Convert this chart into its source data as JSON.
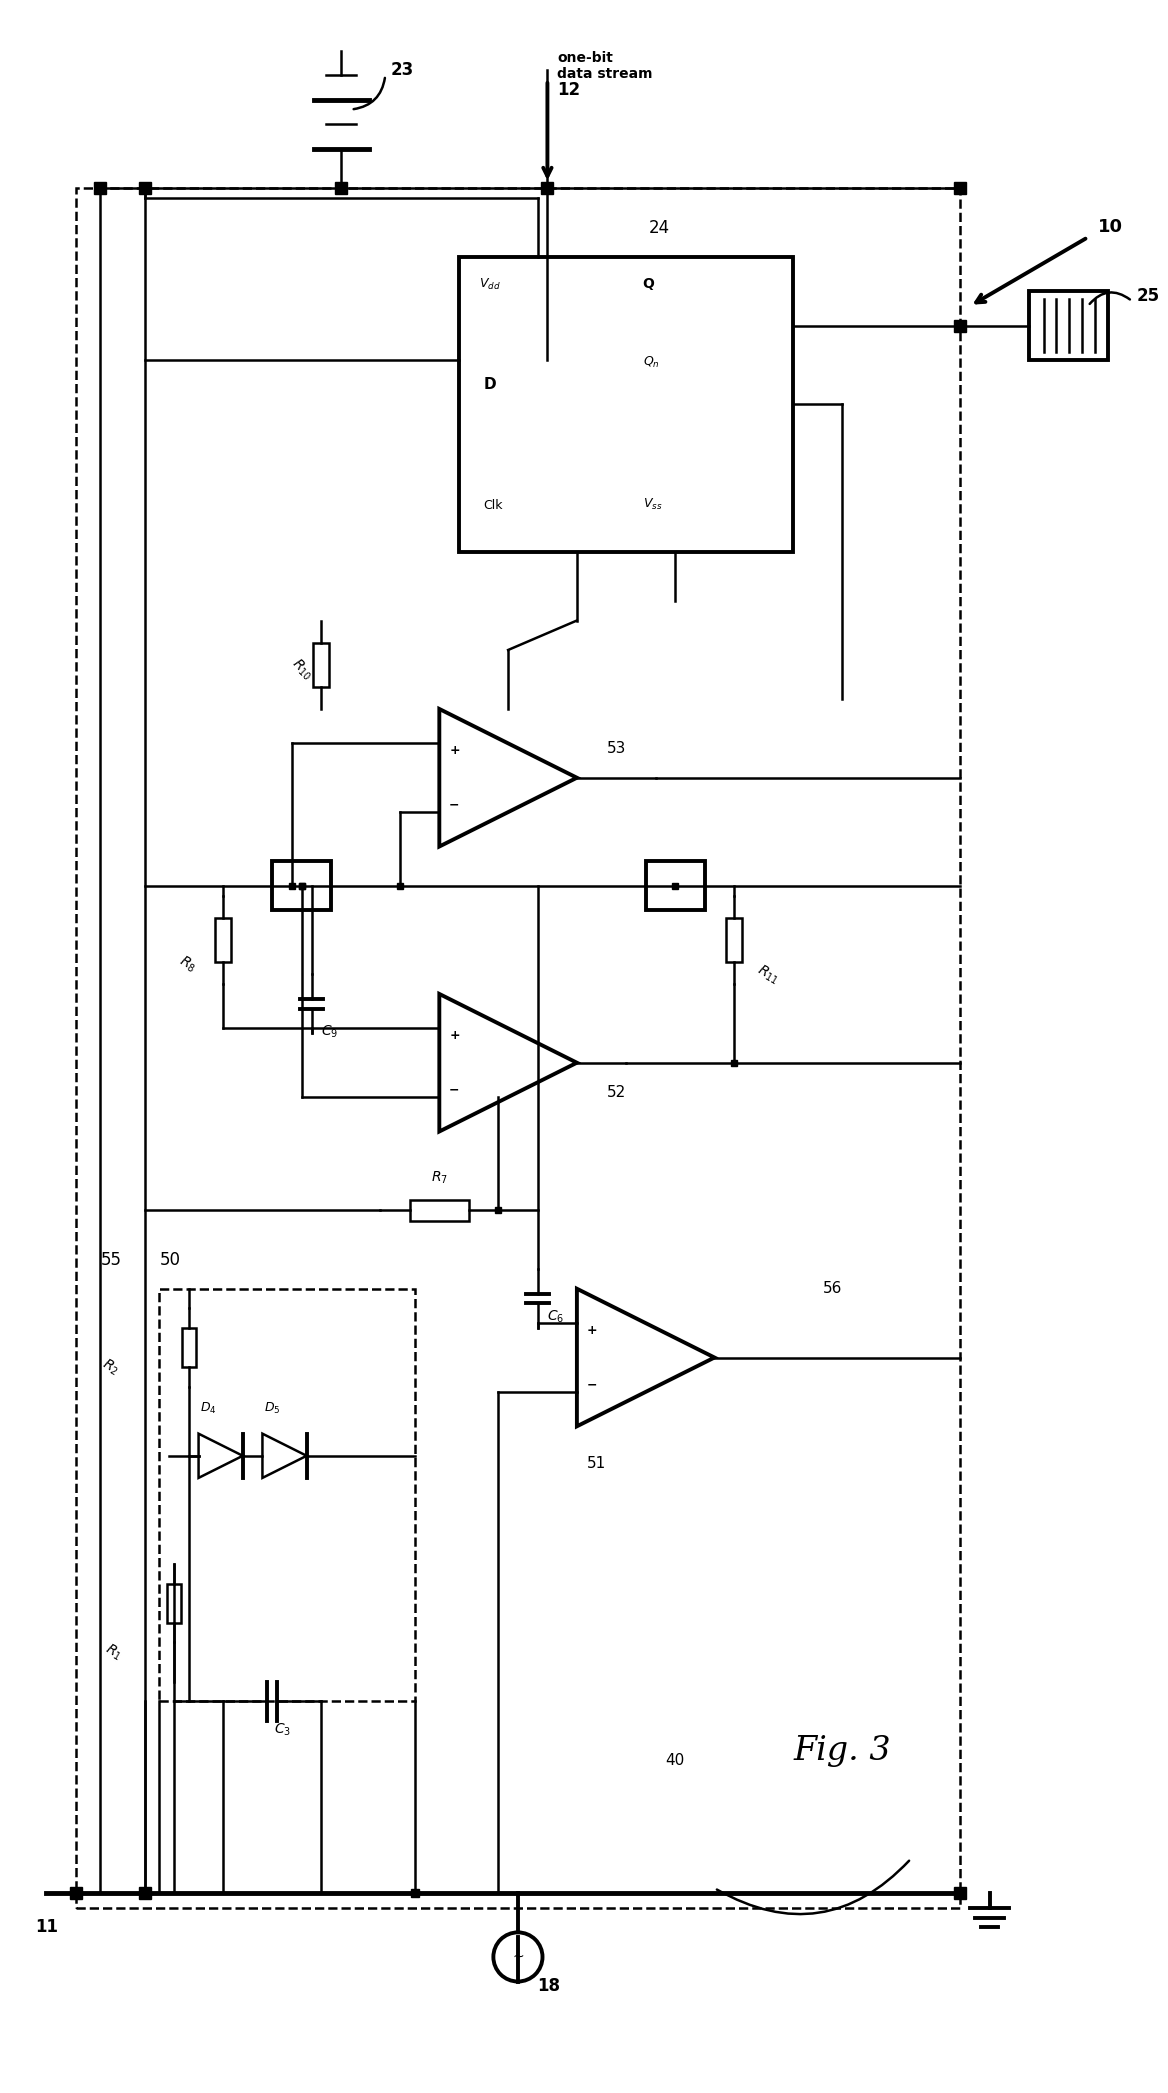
{
  "bg_color": "#ffffff",
  "line_color": "#000000",
  "fig_width": 11.68,
  "fig_height": 20.93,
  "fig_label": "Fig. 3",
  "labels": {
    "10": "10",
    "11": "11",
    "12": "12",
    "18": "18",
    "23": "23",
    "24": "24",
    "25": "25",
    "40": "40",
    "50": "50",
    "51": "51",
    "52": "52",
    "53": "53",
    "55": "55",
    "56": "56",
    "R1": "$R_1$",
    "R2": "$R_2$",
    "R7": "$R_7$",
    "R8": "$R_8$",
    "R10": "$R_{10}$",
    "R11": "$R_{11}$",
    "C3": "$C_3$",
    "C6": "$C_6$",
    "C9": "$C_9$",
    "D4": "$D_4$",
    "D5": "$D_5$",
    "Vdd": "$V_{dd}$",
    "Q": "Q",
    "Qn": "$Q_n$",
    "D": "D",
    "Clk": "Clk",
    "Vss": "$V_{ss}$",
    "one_bit": "one-bit\ndata stream"
  }
}
